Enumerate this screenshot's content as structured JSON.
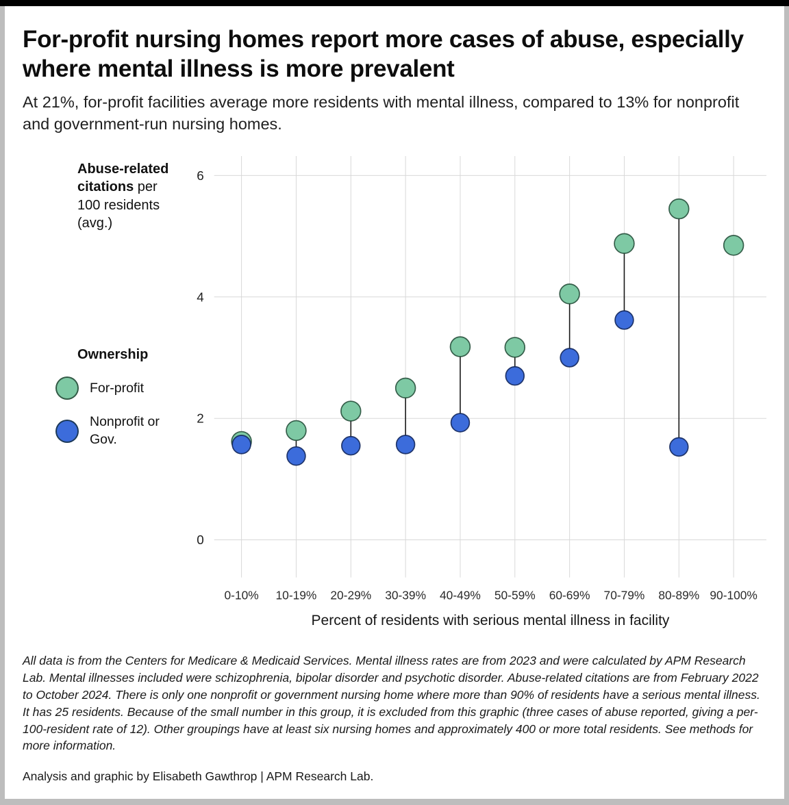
{
  "header": {
    "title": "For-profit nursing homes report more cases of abuse, especially where mental illness is more prevalent",
    "subtitle": "At 21%, for-profit facilities average more residents with mental illness, compared to 13% for nonprofit and government-run nursing homes."
  },
  "chart_data": {
    "type": "scatter",
    "subtype": "dumbbell",
    "title": "For-profit nursing homes report more cases of abuse, especially where mental illness is more prevalent",
    "categories": [
      "0-10%",
      "10-19%",
      "20-29%",
      "30-39%",
      "40-49%",
      "50-59%",
      "60-69%",
      "70-79%",
      "80-89%",
      "90-100%"
    ],
    "series": [
      {
        "name": "For-profit",
        "color": "#7ec9a4",
        "edge_color": "#1d4732",
        "values": [
          1.62,
          1.8,
          2.12,
          2.5,
          3.18,
          3.17,
          4.05,
          4.88,
          5.45,
          4.85
        ]
      },
      {
        "name": "Nonprofit or Gov.",
        "color": "#3c6cdb",
        "edge_color": "#12275c",
        "values": [
          1.57,
          1.38,
          1.55,
          1.57,
          1.93,
          2.7,
          3.0,
          3.62,
          1.53,
          null
        ]
      }
    ],
    "xlabel": "Percent of residents with serious mental illness in facility",
    "ylabel": "Abuse-related citations per 100 residents (avg.)",
    "ylabel_bold": "Abuse-related citations",
    "ylabel_rest": " per 100 residents (avg.)",
    "legend_title": "Ownership",
    "yticks": [
      0,
      2,
      4,
      6
    ],
    "ylim": [
      -0.62,
      6.32
    ],
    "grid": true,
    "legend_position": "left",
    "grid_color": "#d8d8d8",
    "connector_color": "#161616"
  },
  "footer": {
    "note": "All data is from the Centers for Medicare & Medicaid Services. Mental illness rates are from 2023 and were calculated by APM Research Lab. Mental illnesses included were schizophrenia, bipolar disorder and psychotic disorder. Abuse-related citations are from February 2022 to October 2024. There is only one nonprofit or government nursing home where more than 90% of residents have a serious mental illness. It has 25 residents. Because of the small number in this group, it is excluded from this graphic (three cases of abuse reported, giving a per-100-resident rate of 12). Other groupings have at least six nursing homes and approximately 400 or more total residents. See methods for more information.",
    "credit": "Analysis and graphic by Elisabeth Gawthrop | APM Research Lab."
  }
}
